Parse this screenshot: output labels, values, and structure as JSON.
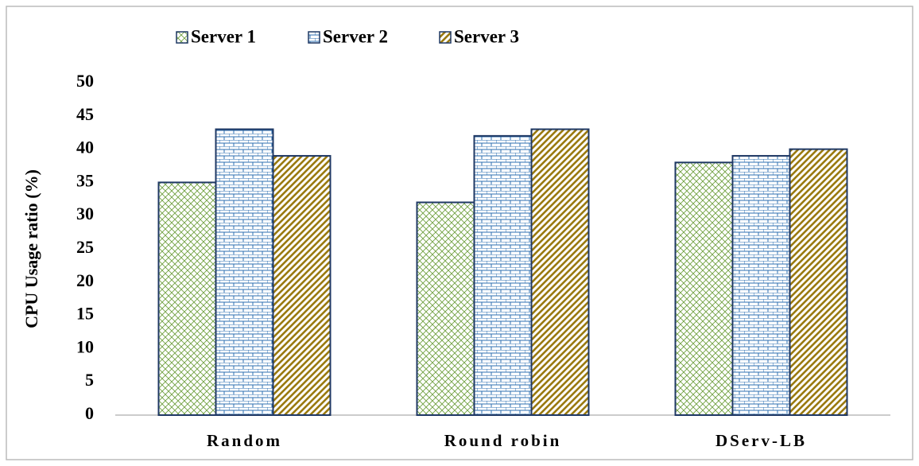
{
  "chart_data": {
    "type": "bar",
    "categories": [
      "Random",
      "Round robin",
      "DServ-LB"
    ],
    "series": [
      {
        "name": "Server 1",
        "color": "#70a040",
        "values": [
          35,
          32,
          38
        ]
      },
      {
        "name": "Server 2",
        "color": "#2e6fb0",
        "values": [
          43,
          42,
          39
        ]
      },
      {
        "name": "Server 3",
        "color": "#9a7a10",
        "values": [
          39,
          43,
          40
        ]
      }
    ],
    "y_label": "CPU Usage ratio (%)",
    "ylim": [
      0,
      50
    ],
    "yticks": [
      0,
      5,
      10,
      15,
      20,
      25,
      30,
      35,
      40,
      45,
      50
    ],
    "grid": false,
    "legend": "top"
  }
}
